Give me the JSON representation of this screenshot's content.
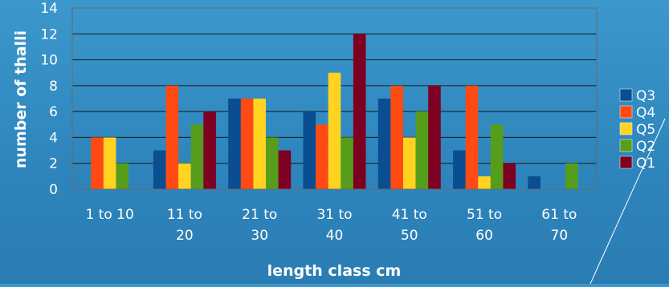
{
  "chart_data": {
    "type": "bar",
    "categories": [
      [
        "1 to 10"
      ],
      [
        "11 to",
        "20"
      ],
      [
        "21 to",
        "30"
      ],
      [
        "31 to",
        "40"
      ],
      [
        "41 to",
        "50"
      ],
      [
        "51 to",
        "60"
      ],
      [
        "61 to",
        "70"
      ]
    ],
    "series": [
      {
        "name": "Q3",
        "color": "#0a4d91",
        "values": [
          0,
          3,
          7,
          6,
          7,
          3,
          1
        ]
      },
      {
        "name": "Q4",
        "color": "#ff4a14",
        "values": [
          4,
          8,
          7,
          5,
          8,
          8,
          0
        ]
      },
      {
        "name": "Q5",
        "color": "#ffd320",
        "values": [
          4,
          2,
          7,
          9,
          4,
          1,
          0
        ]
      },
      {
        "name": "Q2",
        "color": "#579d1c",
        "values": [
          2,
          5,
          4,
          4,
          6,
          5,
          2
        ]
      },
      {
        "name": "Q1",
        "color": "#7e0021",
        "values": [
          0,
          6,
          3,
          12,
          8,
          2,
          0
        ]
      }
    ],
    "ylim": [
      0,
      14
    ],
    "yticks": [
      0,
      2,
      4,
      6,
      8,
      10,
      12,
      14
    ],
    "xlabel": "length class cm",
    "ylabel": "number of thalli",
    "grid": true,
    "legend_position": "right"
  }
}
